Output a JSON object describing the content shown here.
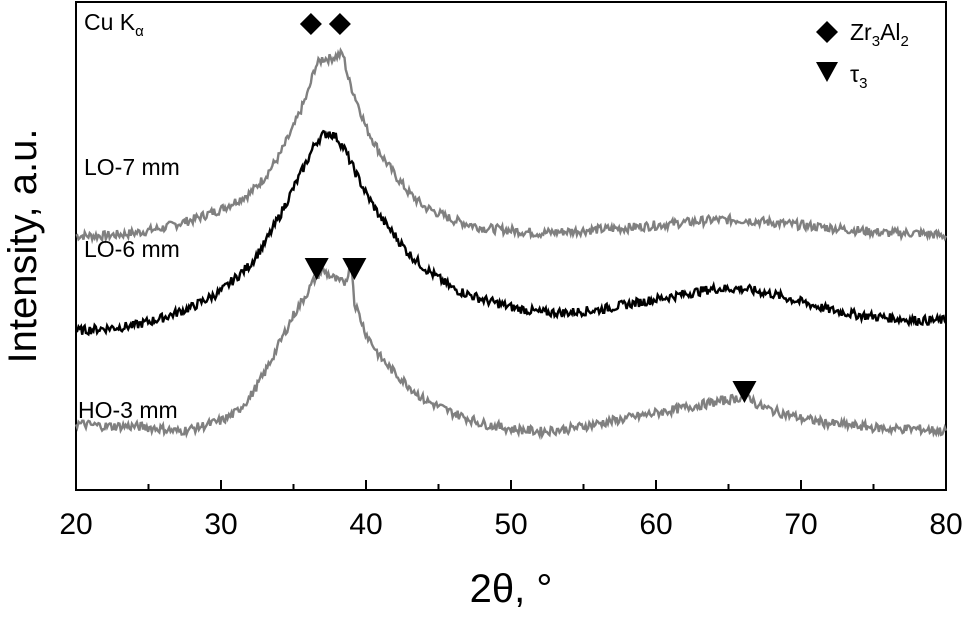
{
  "chart_data": {
    "type": "line",
    "xlabel": "2θ, °",
    "ylabel": "Intensity, a.u.",
    "xlim": [
      20,
      80
    ],
    "x_ticks": [
      20,
      30,
      40,
      50,
      60,
      70,
      80
    ],
    "y_ticks_shown": false,
    "grid": false,
    "radiation_label": "Cu K",
    "radiation_subscript": "α",
    "y_units": "arbitrary (stacked, offset curves)",
    "series": [
      {
        "name": "LO-7 mm",
        "color": "#808080",
        "points": [
          [
            20,
            0.81
          ],
          [
            22,
            0.81
          ],
          [
            24,
            0.82
          ],
          [
            26,
            0.84
          ],
          [
            28,
            0.87
          ],
          [
            30,
            0.91
          ],
          [
            32,
            0.97
          ],
          [
            33,
            1.03
          ],
          [
            34,
            1.11
          ],
          [
            35,
            1.22
          ],
          [
            36,
            1.35
          ],
          [
            36.5,
            1.45
          ],
          [
            37,
            1.48
          ],
          [
            37.5,
            1.48
          ],
          [
            38,
            1.49
          ],
          [
            38.4,
            1.5
          ],
          [
            38.8,
            1.4
          ],
          [
            39.5,
            1.3
          ],
          [
            40,
            1.22
          ],
          [
            41,
            1.12
          ],
          [
            42,
            1.04
          ],
          [
            43,
            0.97
          ],
          [
            44,
            0.92
          ],
          [
            46,
            0.87
          ],
          [
            48,
            0.84
          ],
          [
            50,
            0.83
          ],
          [
            52,
            0.82
          ],
          [
            55,
            0.83
          ],
          [
            58,
            0.84
          ],
          [
            60,
            0.85
          ],
          [
            62,
            0.86
          ],
          [
            64,
            0.87
          ],
          [
            66,
            0.87
          ],
          [
            68,
            0.86
          ],
          [
            70,
            0.85
          ],
          [
            72,
            0.84
          ],
          [
            74,
            0.83
          ],
          [
            76,
            0.82
          ],
          [
            78,
            0.82
          ],
          [
            80,
            0.81
          ]
        ]
      },
      {
        "name": "LO-6 mm",
        "color": "#000000",
        "points": [
          [
            20,
            0.45
          ],
          [
            22,
            0.46
          ],
          [
            24,
            0.47
          ],
          [
            26,
            0.5
          ],
          [
            28,
            0.54
          ],
          [
            30,
            0.6
          ],
          [
            32,
            0.7
          ],
          [
            33,
            0.78
          ],
          [
            34,
            0.88
          ],
          [
            35,
            0.99
          ],
          [
            36,
            1.1
          ],
          [
            36.5,
            1.16
          ],
          [
            37,
            1.19
          ],
          [
            37.5,
            1.2
          ],
          [
            38,
            1.18
          ],
          [
            38.5,
            1.14
          ],
          [
            39,
            1.08
          ],
          [
            40,
            0.97
          ],
          [
            41,
            0.88
          ],
          [
            42,
            0.81
          ],
          [
            43,
            0.74
          ],
          [
            44,
            0.69
          ],
          [
            46,
            0.61
          ],
          [
            48,
            0.57
          ],
          [
            50,
            0.54
          ],
          [
            52,
            0.52
          ],
          [
            54,
            0.52
          ],
          [
            56,
            0.53
          ],
          [
            58,
            0.55
          ],
          [
            60,
            0.57
          ],
          [
            62,
            0.59
          ],
          [
            64,
            0.61
          ],
          [
            66,
            0.61
          ],
          [
            68,
            0.59
          ],
          [
            70,
            0.56
          ],
          [
            72,
            0.53
          ],
          [
            74,
            0.51
          ],
          [
            76,
            0.5
          ],
          [
            78,
            0.49
          ],
          [
            80,
            0.49
          ]
        ]
      },
      {
        "name": "HO-3 mm",
        "color": "#808080",
        "points": [
          [
            20,
            0.1
          ],
          [
            22,
            0.09
          ],
          [
            24,
            0.09
          ],
          [
            26,
            0.08
          ],
          [
            27,
            0.07
          ],
          [
            28,
            0.08
          ],
          [
            30,
            0.11
          ],
          [
            31,
            0.14
          ],
          [
            32,
            0.2
          ],
          [
            33,
            0.29
          ],
          [
            34,
            0.4
          ],
          [
            35,
            0.51
          ],
          [
            36,
            0.6
          ],
          [
            36.5,
            0.65
          ],
          [
            37,
            0.68
          ],
          [
            37.5,
            0.66
          ],
          [
            38,
            0.64
          ],
          [
            38.5,
            0.63
          ],
          [
            39,
            0.7
          ],
          [
            39.2,
            0.56
          ],
          [
            39.6,
            0.5
          ],
          [
            40,
            0.44
          ],
          [
            41,
            0.35
          ],
          [
            42,
            0.29
          ],
          [
            43,
            0.24
          ],
          [
            44,
            0.19
          ],
          [
            46,
            0.14
          ],
          [
            48,
            0.1
          ],
          [
            50,
            0.08
          ],
          [
            52,
            0.07
          ],
          [
            54,
            0.08
          ],
          [
            56,
            0.1
          ],
          [
            58,
            0.12
          ],
          [
            60,
            0.14
          ],
          [
            62,
            0.16
          ],
          [
            64,
            0.18
          ],
          [
            65,
            0.19
          ],
          [
            66,
            0.2
          ],
          [
            66.3,
            0.21
          ],
          [
            67,
            0.17
          ],
          [
            68,
            0.15
          ],
          [
            70,
            0.12
          ],
          [
            72,
            0.1
          ],
          [
            74,
            0.09
          ],
          [
            76,
            0.08
          ],
          [
            78,
            0.08
          ],
          [
            80,
            0.07
          ]
        ]
      }
    ],
    "annotations": {
      "diamond_peaks_x": [
        36.2,
        38.2
      ],
      "triangle_peaks_x": [
        36.6,
        39.2
      ],
      "triangle_high_angle_x": [
        66.1
      ]
    },
    "legend": [
      {
        "symbol": "diamond",
        "label": "Zr",
        "sub1": "3",
        "label2": "Al",
        "sub2": "2"
      },
      {
        "symbol": "triangle-down",
        "label": "τ",
        "sub1": "3"
      }
    ]
  }
}
